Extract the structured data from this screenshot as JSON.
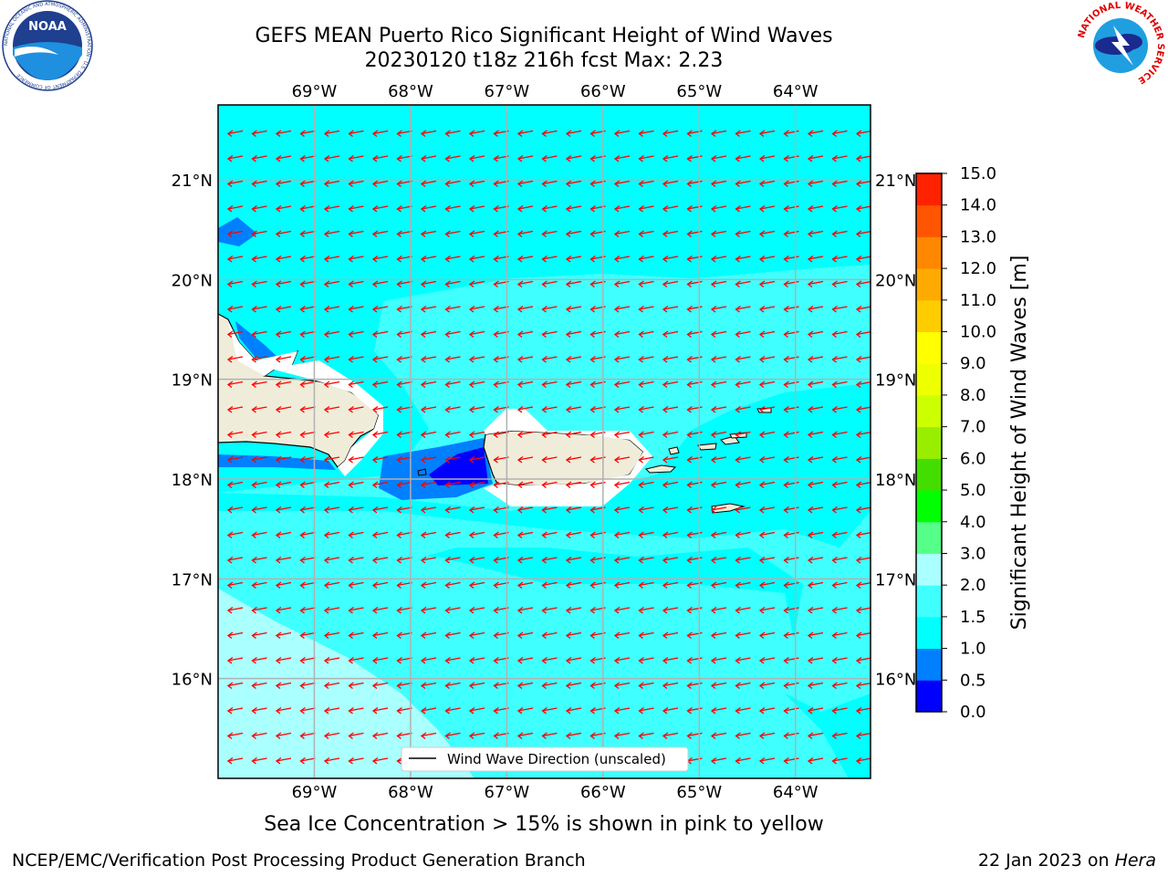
{
  "title_line1": "GEFS MEAN Puerto Rico Significant Height of Wind Waves",
  "title_line2": "20230120 t18z 216h fcst   Max: 2.23",
  "caption": "Sea Ice Concentration > 15% is shown in pink to yellow",
  "footer_left": "NCEP/EMC/Verification Post Processing Product Generation Branch",
  "footer_date": "22 Jan 2023 on",
  "footer_host": "Hera",
  "legend_label": "Wind Wave Direction (unscaled)",
  "logos": {
    "noaa": {
      "text": "NOAA",
      "ring_text": "NATIONAL OCEANIC AND ATMOSPHERIC ADMINISTRATION · U.S. DEPARTMENT OF COMMERCE"
    },
    "nws": {
      "ring_text": "NATIONAL WEATHER SERVICE"
    }
  },
  "map": {
    "lon_labels": [
      "69°W",
      "68°W",
      "67°W",
      "66°W",
      "65°W",
      "64°W"
    ],
    "lat_labels": [
      "21°N",
      "20°N",
      "19°N",
      "18°N",
      "17°N",
      "16°N"
    ],
    "lon_values": [
      -69,
      -68,
      -67,
      -66,
      -65,
      -64
    ],
    "lat_values": [
      21,
      20,
      19,
      18,
      17,
      16
    ],
    "extent": {
      "lon_min": -70.0,
      "lon_max": -63.22,
      "lat_min": 15.0,
      "lat_max": 21.75
    }
  },
  "colorbar": {
    "label": "Significant Height of Wind Waves [m]",
    "tick_labels": [
      "0.0",
      "0.5",
      "1.0",
      "1.5",
      "2.0",
      "3.0",
      "4.0",
      "5.0",
      "6.0",
      "7.0",
      "8.0",
      "9.0",
      "10.0",
      "11.0",
      "12.0",
      "13.0",
      "14.0",
      "15.0"
    ],
    "colors": [
      "#0000ff",
      "#0080ff",
      "#00ffff",
      "#40ffff",
      "#aaffff",
      "#55ff88",
      "#00ff00",
      "#44dd00",
      "#99ee00",
      "#ccff00",
      "#eeff00",
      "#ffff00",
      "#ffcc00",
      "#ffaa00",
      "#ff8800",
      "#ff5500",
      "#ff2200"
    ]
  },
  "colors": {
    "land": "#efedda",
    "arrow": "#ff0000",
    "grid": "#b0b0b0"
  }
}
